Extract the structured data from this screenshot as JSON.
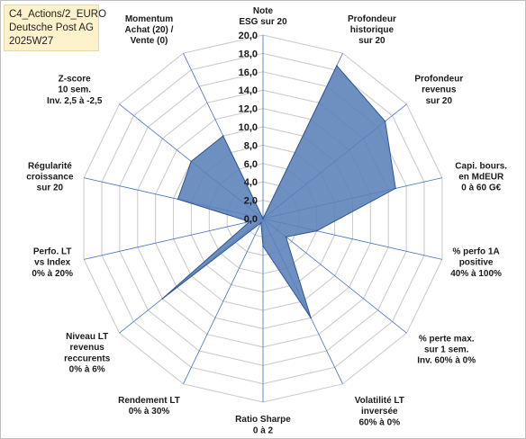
{
  "header": {
    "line1": "C4_Actions/2_EURO",
    "line2": "Deutsche Post AG",
    "line3": "2025W27"
  },
  "chart_data": {
    "type": "radar",
    "rmin": 0,
    "rmax": 20,
    "tick_step": 2,
    "tick_labels": [
      "0,0",
      "2,0",
      "4,0",
      "6,0",
      "8,0",
      "10,0",
      "12,0",
      "14,0",
      "16,0",
      "18,0",
      "20,0"
    ],
    "axes": [
      {
        "label": [
          "Note",
          "ESG sur 20"
        ],
        "value": 0
      },
      {
        "label": [
          "Profondeur",
          "historique",
          "sur 20"
        ],
        "value": 18.5
      },
      {
        "label": [
          "Profondeur",
          "revenus",
          "sur 20"
        ],
        "value": 17.0
      },
      {
        "label": [
          "Capi. bours.",
          "en MdEUR",
          "0 à 60 G€"
        ],
        "value": 14.8
      },
      {
        "label": [
          "% perfo 1A",
          "positive",
          "40% à 100%"
        ],
        "value": 6.0
      },
      {
        "label": [
          "% perte max.",
          "sur 1 sem.",
          "Inv. 60% à 0%"
        ],
        "value": 3.2
      },
      {
        "label": [
          "Volatilité LT",
          "inversée",
          "60% à 0%"
        ],
        "value": 12.0
      },
      {
        "label": [
          "Ratio Sharpe",
          "0 à 2"
        ],
        "value": 3.0
      },
      {
        "label": [
          "Rendement LT",
          "0% à 30%"
        ],
        "value": 0.5
      },
      {
        "label": [
          "Niveau LT",
          "revenus",
          "reccurents",
          "0% à 6%"
        ],
        "value": 14.0
      },
      {
        "label": [
          "Perfo. LT",
          "vs Index",
          "0% à 20%"
        ],
        "value": 1.5
      },
      {
        "label": [
          "Régularité",
          "croissance",
          "sur 20"
        ],
        "value": 9.5
      },
      {
        "label": [
          "Z-score",
          "10 sem.",
          "Inv. 2,5 à -2,5"
        ],
        "value": 10.0
      },
      {
        "label": [
          "Momentum",
          "Achat (20) /",
          "Vente (0)"
        ],
        "value": 10.0
      }
    ],
    "colors": {
      "fill": "#5a81b8",
      "stroke": "#2f5597",
      "spoke": "#4472c4",
      "grid": "#c8c8c8"
    }
  }
}
